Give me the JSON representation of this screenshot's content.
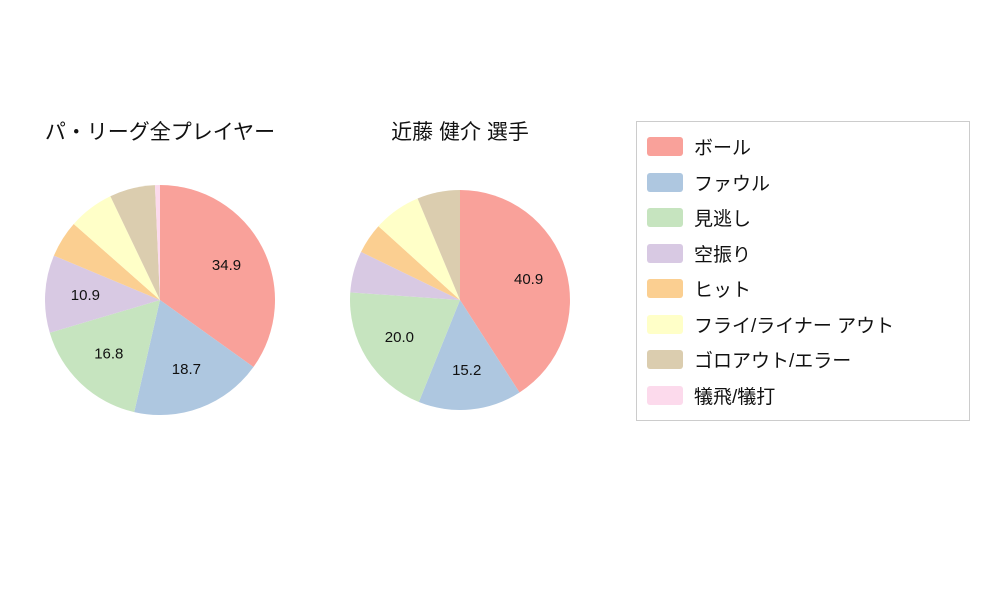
{
  "colors": [
    "#f9a19a",
    "#aec7e0",
    "#c6e4bf",
    "#d8c9e3",
    "#fbcf91",
    "#ffffc8",
    "#dbcdaf",
    "#fcdaec"
  ],
  "chart_data": [
    {
      "type": "pie",
      "title": "パ・リーグ全プレイヤー",
      "categories": [
        "ボール",
        "ファウル",
        "見逃し",
        "空振り",
        "ヒット",
        "フライ/ライナー アウト",
        "ゴロアウト/エラー",
        "犠飛/犠打"
      ],
      "values": [
        34.9,
        18.7,
        16.8,
        10.9,
        5.2,
        6.4,
        6.4,
        0.7
      ],
      "labeled_values": [
        "34.9",
        "18.7",
        "16.8",
        "10.9"
      ],
      "label_threshold": 10,
      "start_angle": "top",
      "direction": "clockwise"
    },
    {
      "type": "pie",
      "title": "近藤 健介 選手",
      "categories": [
        "ボール",
        "ファウル",
        "見逃し",
        "空振り",
        "ヒット",
        "フライ/ライナー アウト",
        "ゴロアウト/エラー",
        "犠飛/犠打"
      ],
      "values": [
        40.9,
        15.2,
        20.0,
        6.1,
        4.5,
        7.0,
        6.3,
        0.0
      ],
      "labeled_values": [
        "40.9",
        "15.2",
        "20.0"
      ],
      "label_threshold": 10,
      "start_angle": "top",
      "direction": "clockwise"
    }
  ],
  "legend": {
    "position": "right",
    "items": [
      {
        "label": "ボール",
        "color": "#f9a19a"
      },
      {
        "label": "ファウル",
        "color": "#aec7e0"
      },
      {
        "label": "見逃し",
        "color": "#c6e4bf"
      },
      {
        "label": "空振り",
        "color": "#d8c9e3"
      },
      {
        "label": "ヒット",
        "color": "#fbcf91"
      },
      {
        "label": "フライ/ライナー アウト",
        "color": "#ffffc8"
      },
      {
        "label": "ゴロアウト/エラー",
        "color": "#dbcdaf"
      },
      {
        "label": "犠飛/犠打",
        "color": "#fcdaec"
      }
    ]
  }
}
